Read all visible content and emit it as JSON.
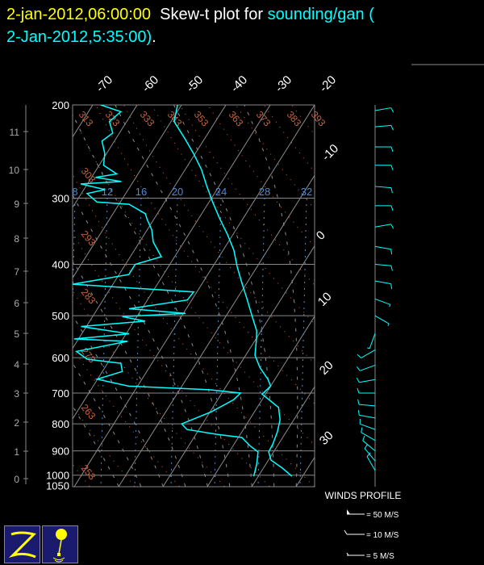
{
  "title": {
    "date": "2-jan-2012,06:00:00",
    "middle": "Skew-t plot for",
    "station": "sounding/gan (",
    "station_time": "2-Jan-2012,5:35:00)",
    "end": "."
  },
  "colors": {
    "sounding": "#00ffff",
    "isotherm": "#8c8c8c",
    "dry_adiabat": "#c8643c",
    "mixing_ratio": "#4a8ad0",
    "moist_adiabat": "#8c8c8c",
    "date": "#ffff00",
    "logo_bg": "#1a1a6e",
    "logo_fg": "#ffff00"
  },
  "chart_data": {
    "type": "line",
    "subtype": "skew-t log-p",
    "y_scale": "log",
    "ylabel_units": "hPa",
    "pressure_ticks": [
      "200",
      "300",
      "400",
      "500",
      "600",
      "700",
      "800",
      "900",
      "1000",
      "1050"
    ],
    "height_ticks_km": [
      "11",
      "10",
      "9",
      "8",
      "7",
      "6",
      "5",
      "4",
      "3",
      "2",
      "1",
      "0"
    ],
    "isotherm_labels": [
      "-70",
      "-60",
      "-50",
      "-40",
      "-30",
      "-20",
      "-10",
      "0",
      "10",
      "20",
      "30"
    ],
    "dry_adiabat_labels": [
      "313",
      "323",
      "333",
      "343",
      "353",
      "363",
      "373",
      "383",
      "393",
      "303",
      "293",
      "283",
      "273",
      "263",
      "253"
    ],
    "mixing_ratio_labels": [
      "8",
      "12",
      "16",
      "20",
      "24",
      "28",
      "32"
    ],
    "ylim": [
      1050,
      200
    ],
    "temperature": {
      "p": [
        200,
        215,
        230,
        247,
        265,
        284,
        305,
        327,
        351,
        376,
        404,
        433,
        464,
        498,
        534,
        553,
        594,
        626,
        659,
        679,
        703,
        745,
        786,
        828,
        873,
        904,
        937,
        970,
        1005
      ],
      "T": [
        -50.9,
        -49.3,
        -44.9,
        -40.4,
        -36.3,
        -32.9,
        -29.2,
        -25.4,
        -21.3,
        -17.6,
        -14.5,
        -11.2,
        -7.8,
        -4.4,
        -1.0,
        0.1,
        2.1,
        4.9,
        8.4,
        10.0,
        9.2,
        14.8,
        16.9,
        18.0,
        18.7,
        18.9,
        20.6,
        24.3,
        27.6
      ]
    },
    "dewpoint": {
      "p": [
        200,
        206,
        215,
        226,
        234,
        247,
        260,
        270,
        274,
        279,
        282,
        289,
        294,
        305,
        308,
        321,
        329,
        344,
        363,
        387,
        400,
        418,
        436,
        451,
        467,
        485,
        495,
        502,
        512,
        524,
        541,
        553,
        559,
        584,
        604,
        615,
        637,
        659,
        679,
        690,
        700,
        720,
        759,
        800,
        820,
        838,
        849,
        880,
        904,
        952,
        1005
      ],
      "T": [
        -68.2,
        -62.7,
        -63.9,
        -61.5,
        -62.8,
        -60.4,
        -59.0,
        -54.8,
        -59.1,
        -52.7,
        -61.5,
        -55.2,
        -58.7,
        -55.3,
        -47.7,
        -42.7,
        -41.5,
        -39.0,
        -36.9,
        -33.0,
        -37.8,
        -37.8,
        -49.1,
        -20.7,
        -21.0,
        -32.9,
        -19.5,
        -33.3,
        -27.5,
        -41.2,
        -29.3,
        -41.0,
        -28.6,
        -38.7,
        -35.2,
        -27.0,
        -25.5,
        -30.1,
        -22.0,
        -3.2,
        4.2,
        3.6,
        0.3,
        -4.7,
        -2.7,
        4.9,
        10.8,
        13.8,
        16.5,
        17.9,
        19.0
      ]
    }
  },
  "winds": {
    "title": "WINDS PROFILE",
    "legend": [
      {
        "label": "= 50 M/S",
        "speed": 50
      },
      {
        "label": "= 10 M/S",
        "speed": 10
      },
      {
        "label": "= 5 M/S",
        "speed": 5
      }
    ],
    "profile": [
      {
        "p": 205,
        "dir": 80,
        "spd": 10
      },
      {
        "p": 220,
        "dir": 85,
        "spd": 10
      },
      {
        "p": 240,
        "dir": 90,
        "spd": 10
      },
      {
        "p": 260,
        "dir": 90,
        "spd": 10
      },
      {
        "p": 285,
        "dir": 95,
        "spd": 10
      },
      {
        "p": 310,
        "dir": 90,
        "spd": 10
      },
      {
        "p": 340,
        "dir": 80,
        "spd": 10
      },
      {
        "p": 370,
        "dir": 100,
        "spd": 10
      },
      {
        "p": 400,
        "dir": 95,
        "spd": 10
      },
      {
        "p": 430,
        "dir": 100,
        "spd": 10
      },
      {
        "p": 465,
        "dir": 110,
        "spd": 5
      },
      {
        "p": 500,
        "dir": 120,
        "spd": 5
      },
      {
        "p": 540,
        "dir": 200,
        "spd": 5
      },
      {
        "p": 580,
        "dir": 240,
        "spd": 10
      },
      {
        "p": 620,
        "dir": 250,
        "spd": 10
      },
      {
        "p": 660,
        "dir": 260,
        "spd": 10
      },
      {
        "p": 700,
        "dir": 270,
        "spd": 10
      },
      {
        "p": 740,
        "dir": 275,
        "spd": 10
      },
      {
        "p": 780,
        "dir": 280,
        "spd": 10
      },
      {
        "p": 820,
        "dir": 290,
        "spd": 10
      },
      {
        "p": 860,
        "dir": 300,
        "spd": 10
      },
      {
        "p": 900,
        "dir": 310,
        "spd": 10
      },
      {
        "p": 940,
        "dir": 320,
        "spd": 10
      },
      {
        "p": 980,
        "dir": 330,
        "spd": 10
      }
    ]
  }
}
